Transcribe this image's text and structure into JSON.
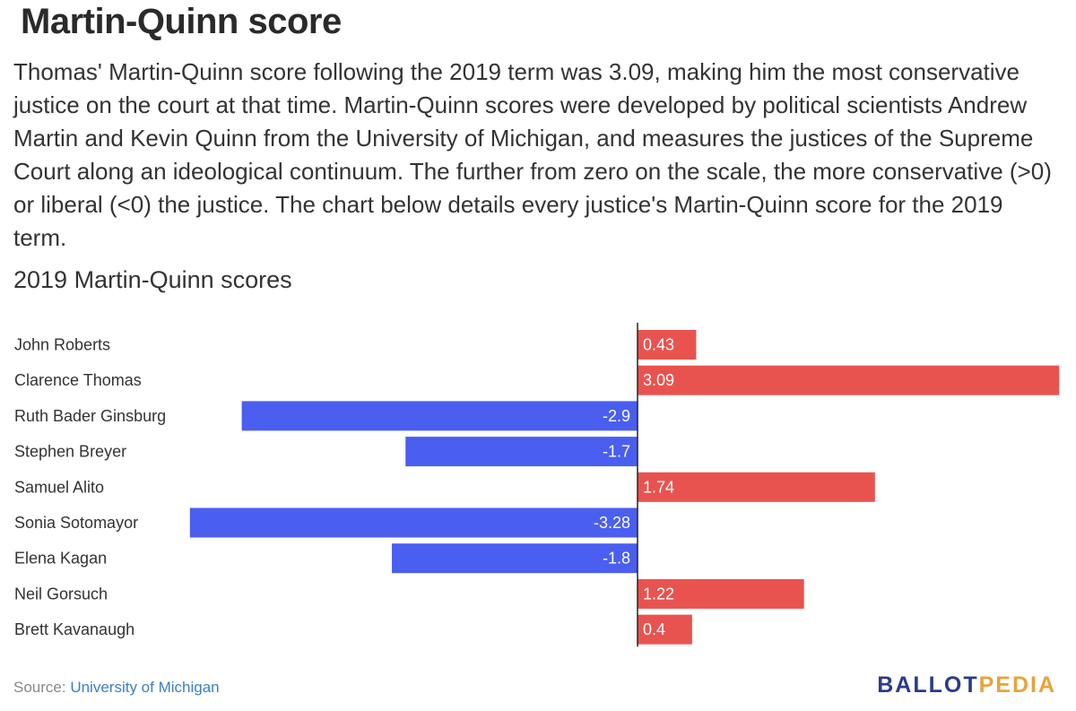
{
  "title": "Martin-Quinn score",
  "description": "Thomas' Martin-Quinn score following the 2019 term was 3.09, making him the most conservative justice on the court at that time. Martin-Quinn scores were developed by political scientists Andrew Martin and Kevin Quinn from the University of Michigan, and measures the justices of the Supreme Court along an ideological continuum. The further from zero on the scale, the more conservative (>0) or liberal (<0) the justice. The chart below details every justice's Martin-Quinn score for the 2019 term.",
  "chart_data": {
    "type": "bar",
    "orientation": "horizontal",
    "title": "2019 Martin-Quinn scores",
    "categories": [
      "John Roberts",
      "Clarence Thomas",
      "Ruth Bader Ginsburg",
      "Stephen Breyer",
      "Samuel Alito",
      "Sonia Sotomayor",
      "Elena Kagan",
      "Neil Gorsuch",
      "Brett Kavanaugh"
    ],
    "values": [
      0.43,
      3.09,
      -2.9,
      -1.7,
      1.74,
      -3.28,
      -1.8,
      1.22,
      0.4
    ],
    "value_labels": [
      "0.43",
      "3.09",
      "-2.9",
      "-1.7",
      "1.74",
      "-3.28",
      "-1.8",
      "1.22",
      "0.4"
    ],
    "xlim": [
      -3.28,
      3.09
    ],
    "grid": false,
    "colors": {
      "positive": "#e9534f",
      "negative": "#4a5ef0"
    }
  },
  "footer": {
    "source_label": "Source:",
    "source_link": "University of Michigan",
    "logo_part1": "BALLOT",
    "logo_part2": "PEDIA"
  }
}
